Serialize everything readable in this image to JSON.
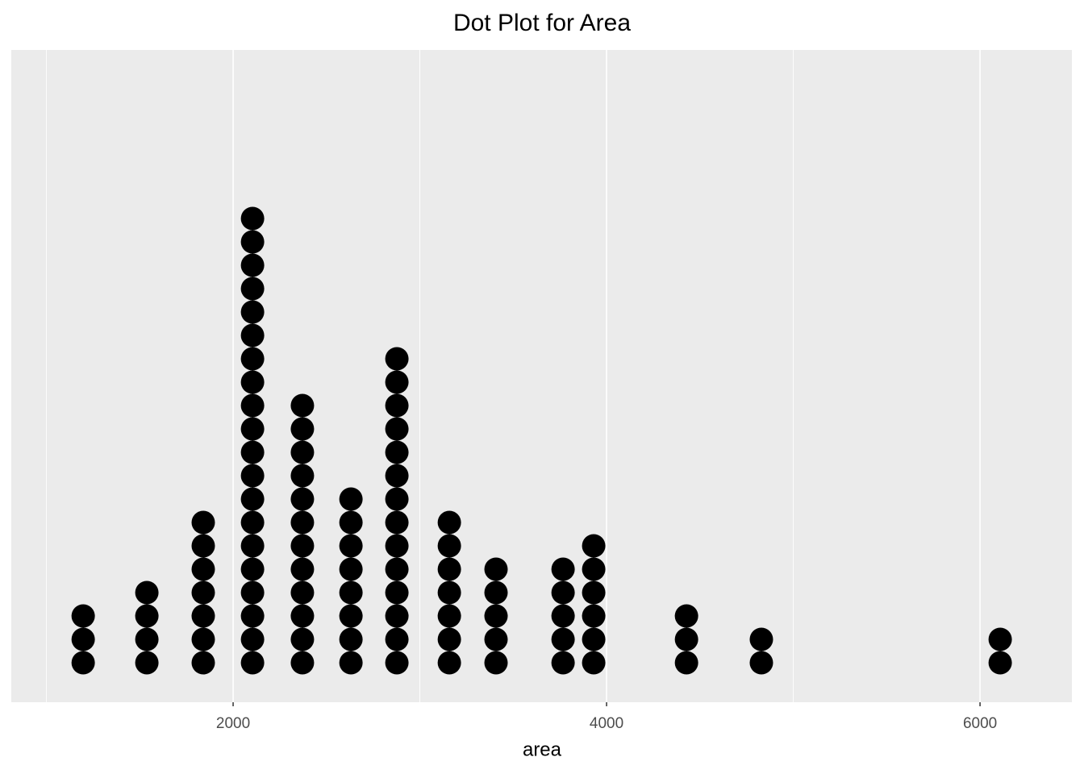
{
  "chart_data": {
    "type": "dot",
    "title": "Dot Plot for Area",
    "x_label": "area",
    "x": [
      1197,
      1538,
      1840,
      2104,
      2371,
      2631,
      2877,
      3158,
      3408,
      3767,
      3931,
      4428,
      4829,
      6108
    ],
    "values": [
      3,
      4,
      7,
      20,
      12,
      8,
      14,
      7,
      5,
      5,
      6,
      3,
      2,
      2
    ],
    "color": "#000000",
    "xlim": [
      812,
      6492
    ],
    "xticks": [
      2000,
      4000,
      6000
    ],
    "grid": true
  }
}
